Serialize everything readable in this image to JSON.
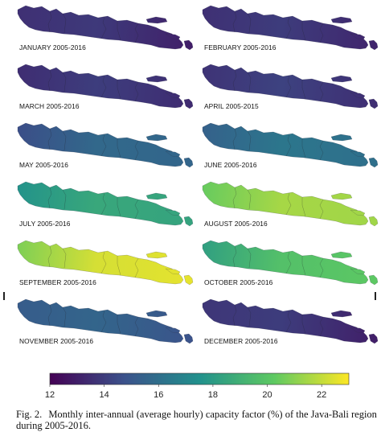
{
  "scale": {
    "range": [
      12,
      23
    ],
    "ticks": [
      "12",
      "14",
      "16",
      "18",
      "20",
      "22"
    ],
    "tick_values": [
      12,
      14,
      16,
      18,
      20,
      22
    ],
    "colormap": [
      "#440154",
      "#3b528b",
      "#21918c",
      "#5ec962",
      "#fde725"
    ]
  },
  "panels": [
    {
      "label": "JANUARY 2005-2016",
      "west": 13.6,
      "east": 13.0
    },
    {
      "label": "FEBRUARY 2005-2016",
      "west": 13.6,
      "east": 13.2
    },
    {
      "label": "MARCH 2005-2016",
      "west": 13.5,
      "east": 13.4
    },
    {
      "label": "APRIL 2005-2015",
      "west": 13.7,
      "east": 13.5
    },
    {
      "label": "MAY 2005-2016",
      "west": 14.6,
      "east": 15.6
    },
    {
      "label": "JUNE 2005-2016",
      "west": 15.4,
      "east": 16.0
    },
    {
      "label": "JULY 2005-2016",
      "west": 17.6,
      "east": 18.4
    },
    {
      "label": "AUGUST 2005-2016",
      "west": 20.4,
      "east": 21.4
    },
    {
      "label": "SEPTEMBER 2005-2016",
      "west": 20.8,
      "east": 22.6
    },
    {
      "label": "OCTOBER 2005-2016",
      "west": 18.2,
      "east": 20.2
    },
    {
      "label": "NOVEMBER 2005-2016",
      "west": 15.2,
      "east": 14.8
    },
    {
      "label": "DECEMBER 2005-2016",
      "west": 13.8,
      "east": 13.0
    }
  ],
  "caption": {
    "fig_label": "Fig. 2.",
    "text": "Monthly inter-annual (average hourly) capacity factor (%) of the Java-Bali region during 2005-2016."
  }
}
